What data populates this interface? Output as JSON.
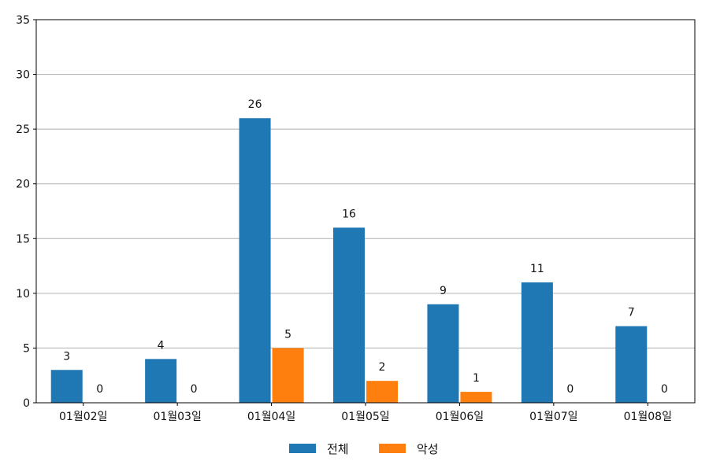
{
  "chart_data": {
    "type": "bar",
    "categories": [
      "01월02일",
      "01월03일",
      "01월04일",
      "01월05일",
      "01월06일",
      "01월07일",
      "01월08일"
    ],
    "series": [
      {
        "name": "전체",
        "color": "#1f77b4",
        "values": [
          3,
          4,
          26,
          16,
          9,
          11,
          7
        ]
      },
      {
        "name": "악성",
        "color": "#ff7f0e",
        "values": [
          0,
          0,
          5,
          2,
          1,
          0,
          0
        ]
      }
    ],
    "ylim": [
      0,
      35
    ],
    "yticks": [
      0,
      5,
      10,
      15,
      20,
      25,
      30,
      35
    ],
    "grid": "horizontal",
    "legend_position": "bottom"
  }
}
